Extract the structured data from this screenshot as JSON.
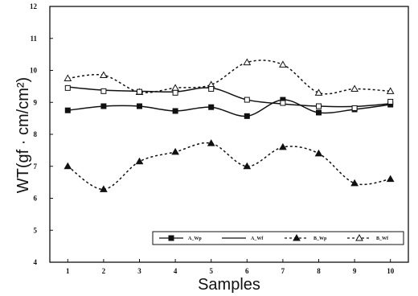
{
  "chart_data": {
    "type": "line",
    "xlabel": "Samples",
    "ylabel": "WT(gf · cm/cm²)",
    "xlim": [
      0.5,
      10.5
    ],
    "ylim": [
      4,
      12
    ],
    "x_ticks": [
      "1",
      "2",
      "3",
      "4",
      "5",
      "6",
      "7",
      "8",
      "9",
      "10"
    ],
    "y_ticks": [
      "4",
      "5",
      "6",
      "7",
      "8",
      "9",
      "10",
      "11",
      "12"
    ],
    "legend_position": "bottom-right",
    "grid": false,
    "series": [
      {
        "name": "A_Wp",
        "line_style": "solid",
        "marker": "filled-square",
        "x": [
          1,
          2,
          3,
          4,
          5,
          6,
          7,
          8,
          9,
          10
        ],
        "y": [
          8.75,
          8.88,
          8.88,
          8.73,
          8.85,
          8.57,
          9.08,
          8.68,
          8.78,
          8.93
        ]
      },
      {
        "name": "A_Wf",
        "line_style": "solid",
        "marker": "none",
        "x": [
          1,
          2,
          3,
          4,
          5,
          6,
          7,
          8,
          9,
          10
        ],
        "y": [
          9.48,
          9.38,
          9.35,
          9.33,
          9.45,
          9.08,
          8.95,
          8.88,
          8.87,
          8.96
        ]
      },
      {
        "name": "B_Wp",
        "line_style": "dotted",
        "marker": "filled-triangle",
        "x": [
          1,
          2,
          3,
          4,
          5,
          6,
          7,
          8,
          9,
          10
        ],
        "y": [
          7.0,
          6.28,
          7.15,
          7.45,
          7.72,
          7.0,
          7.6,
          7.4,
          6.47,
          6.6
        ]
      },
      {
        "name": "B_Wf",
        "line_style": "dotted",
        "marker": "open-triangle",
        "x": [
          1,
          2,
          3,
          4,
          5,
          6,
          7,
          8,
          9,
          10
        ],
        "y": [
          9.75,
          9.85,
          9.32,
          9.45,
          9.55,
          10.25,
          10.18,
          9.3,
          9.42,
          9.35
        ]
      }
    ],
    "extra_markers": [
      {
        "marker": "open-square",
        "x": [
          1,
          2,
          3,
          4,
          5,
          6,
          7,
          8,
          9,
          10
        ],
        "y": [
          9.45,
          9.35,
          9.33,
          9.3,
          9.42,
          9.08,
          8.98,
          8.88,
          8.82,
          9.02
        ]
      }
    ],
    "legend": [
      {
        "label": "A_Wp",
        "series": 0
      },
      {
        "label": "A_Wf",
        "series": 1
      },
      {
        "label": "B_Wp",
        "series": 2
      },
      {
        "label": "B_Wf",
        "series": 3
      }
    ]
  }
}
